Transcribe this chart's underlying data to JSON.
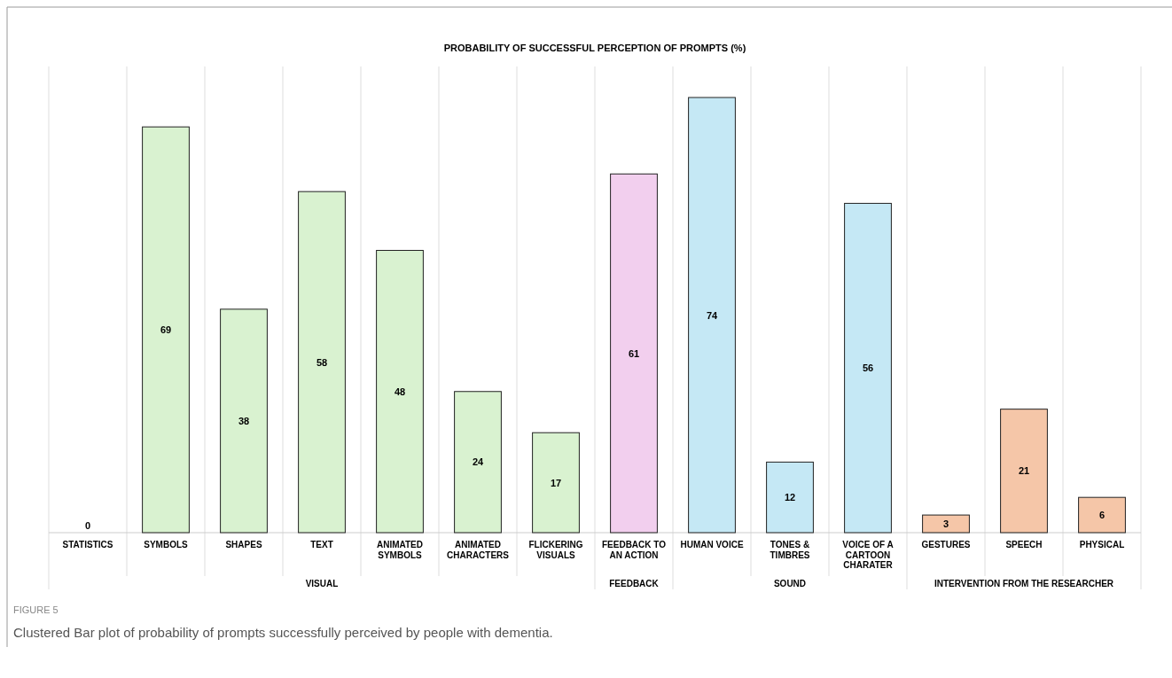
{
  "chart_data": {
    "type": "bar",
    "title": "PROBABILITY OF SUCCESSFUL PERCEPTION OF PROMPTS (%)",
    "categories": [
      "STATISTICS",
      "SYMBOLS",
      "SHAPES",
      "TEXT",
      "ANIMATED SYMBOLS",
      "ANIMATED CHARACTERS",
      "FLICKERING VISUALS",
      "FEEDBACK TO AN ACTION",
      "HUMAN VOICE",
      "TONES & TIMBRES",
      "VOICE OF A CARTOON CHARATER",
      "GESTURES",
      "SPEECH",
      "PHYSICAL"
    ],
    "values": [
      0,
      69,
      38,
      58,
      48,
      24,
      17,
      61,
      74,
      12,
      56,
      3,
      21,
      6
    ],
    "colors": [
      "#d9f2d0",
      "#d9f2d0",
      "#d9f2d0",
      "#d9f2d0",
      "#d9f2d0",
      "#d9f2d0",
      "#d9f2d0",
      "#f2cfee",
      "#c5e8f5",
      "#c5e8f5",
      "#c5e8f5",
      "#f5c6a8",
      "#f5c6a8",
      "#f5c6a8"
    ],
    "data_labels": true,
    "grid": "x",
    "annotations": [
      "VISUAL",
      "FEEDBACK",
      "SOUND",
      "INTERVENTION FROM THE RESEARCHER",
      "FIGURE 5",
      "Clustered Bar plot of probability of prompts successfully perceived by people with dementia."
    ]
  }
}
